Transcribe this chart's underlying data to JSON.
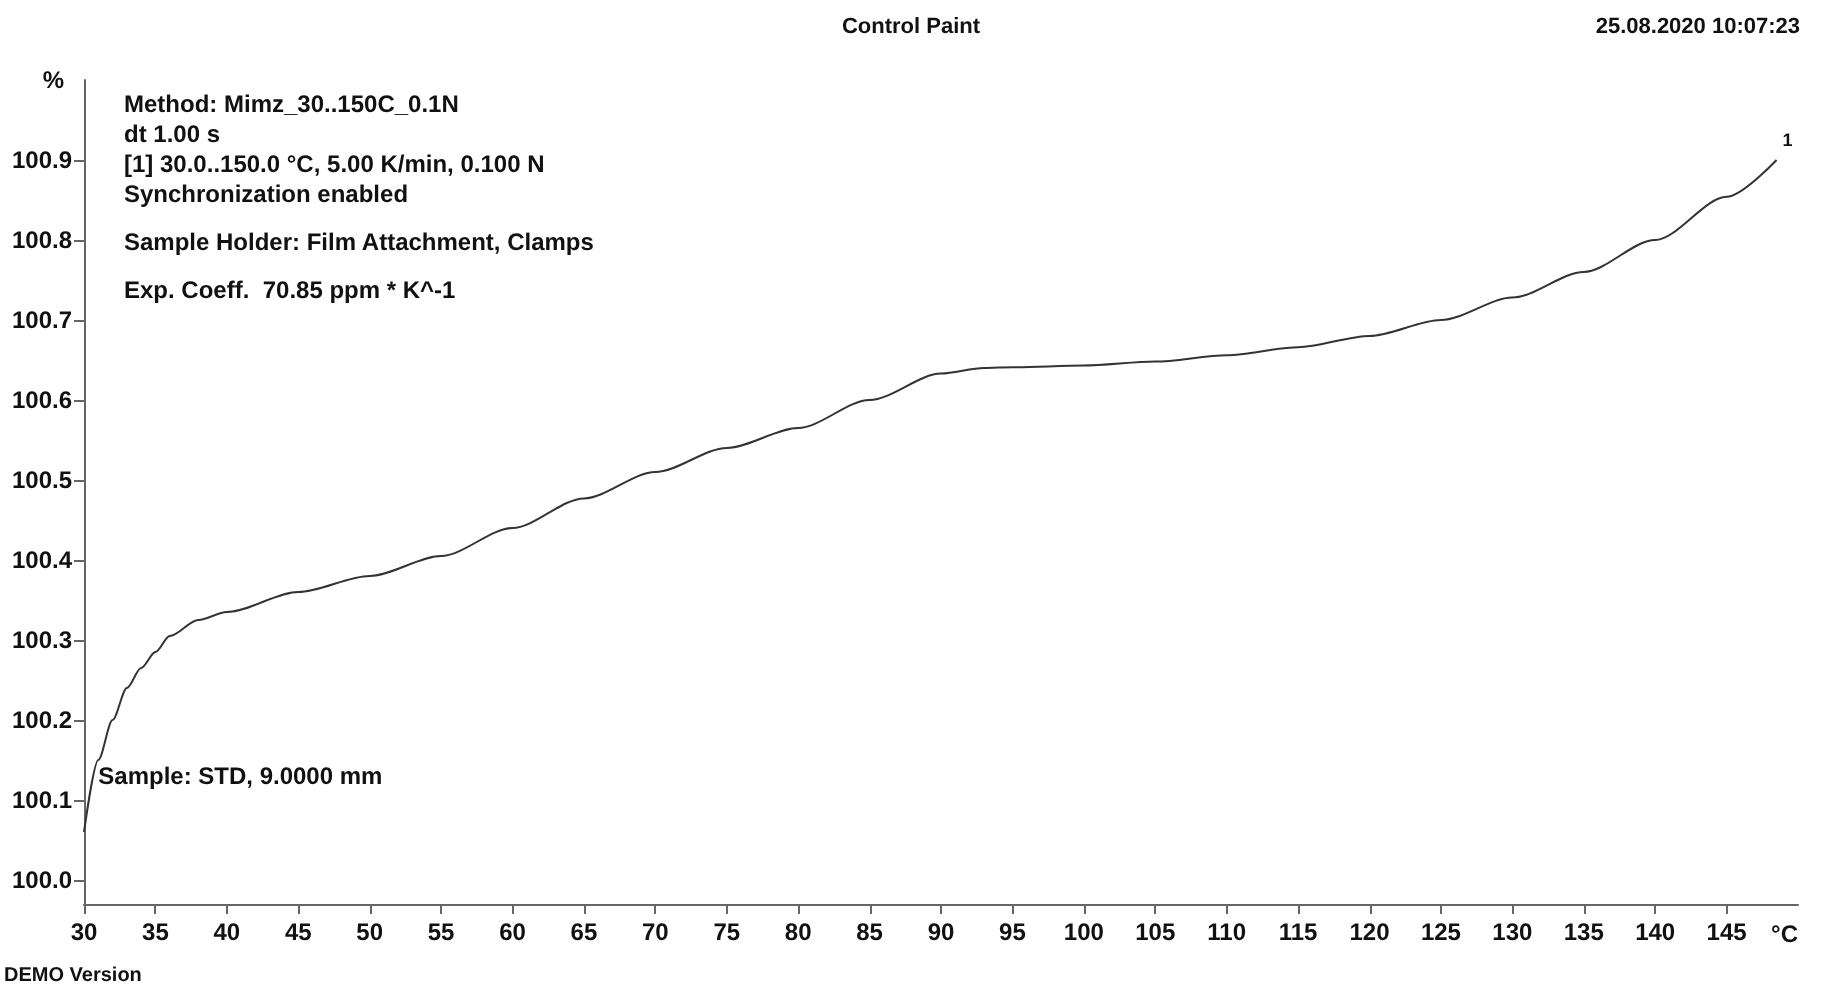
{
  "chart_data": {
    "type": "line",
    "title": "Control Paint",
    "subtitle": "25.08.2020 10:07:23",
    "xlabel": "°C",
    "ylabel": "%",
    "x": [
      30,
      31,
      32,
      33,
      34,
      35,
      36,
      38,
      40,
      45,
      50,
      55,
      60,
      65,
      70,
      75,
      80,
      85,
      90,
      93,
      95,
      100,
      105,
      110,
      115,
      120,
      125,
      130,
      135,
      140,
      145,
      148.5
    ],
    "series": [
      {
        "color": "#333333",
        "values": [
          100.06,
          100.15,
          100.2,
          100.24,
          100.265,
          100.285,
          100.305,
          100.325,
          100.335,
          100.36,
          100.38,
          100.405,
          100.44,
          100.477,
          100.51,
          100.54,
          100.565,
          100.6,
          100.633,
          100.64,
          100.641,
          100.643,
          100.648,
          100.656,
          100.666,
          100.68,
          100.7,
          100.728,
          100.76,
          100.8,
          100.854,
          100.9
        ]
      }
    ],
    "xlim": [
      30,
      150
    ],
    "xticks": [
      30,
      35,
      40,
      45,
      50,
      55,
      60,
      65,
      70,
      75,
      80,
      85,
      90,
      95,
      100,
      105,
      110,
      115,
      120,
      125,
      130,
      135,
      140,
      145
    ],
    "ylim": [
      99.97,
      101.0
    ],
    "yticks": [
      {
        "value": 100,
        "label": "100.0"
      },
      100.1,
      100.2,
      100.3,
      100.4,
      100.5,
      100.6,
      100.7,
      100.8,
      100.9
    ],
    "grid": false,
    "marker": "none",
    "line_style": "solid",
    "annotations": [
      "Method: Mimz_30..150C_0.1N",
      "dt 1.00 s",
      "[1] 30.0..150.0 °C, 5.00 K/min, 0.100 N",
      "Synchronization enabled",
      "Sample Holder: Film Attachment, Clamps",
      "Exp. Coeff.  70.85 ppm * K^-1",
      {
        "text": "Sample: STD, 9.0000 mm",
        "x": 31,
        "y": 100.13
      },
      {
        "text": "1",
        "x": 148.5,
        "y": 100.9
      },
      "DEMO Version"
    ]
  }
}
